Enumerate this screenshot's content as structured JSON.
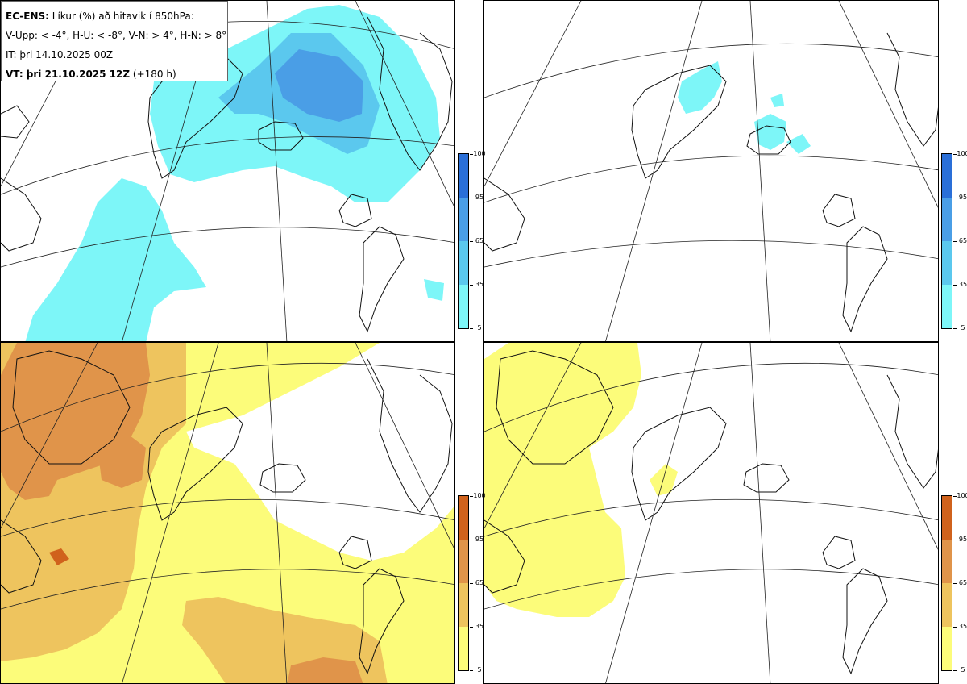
{
  "legend": {
    "line1_bold": "EC-ENS:",
    "line1_rest": " Líkur (%) að hitavik í 850hPa:",
    "line2": "V-Upp: < -4°, H-U: < -8°, V-N: > 4°, H-N: > 8°",
    "line3": "IT: þri 14.10.2025 00Z",
    "line4_bold": "VT: þri 21.10.2025 12Z",
    "line4_rest": " (+180 h)"
  },
  "colorbar": {
    "ticks": [
      "100",
      "95",
      "65",
      "35",
      "5"
    ],
    "cold_colors": [
      "#2a6fd8",
      "#4a9ee6",
      "#5bc8ee",
      "#7df6f8"
    ],
    "warm_colors": [
      "#d0621c",
      "#e0944a",
      "#eec45e",
      "#fcfc7a"
    ]
  },
  "panels": [
    {
      "id": "upper-left",
      "variable": "V-Upp: < -4°"
    },
    {
      "id": "upper-right",
      "variable": "H-U: < -8°"
    },
    {
      "id": "lower-left",
      "variable": "V-N: > 4°"
    },
    {
      "id": "lower-right",
      "variable": "H-N: > 8°"
    }
  ]
}
